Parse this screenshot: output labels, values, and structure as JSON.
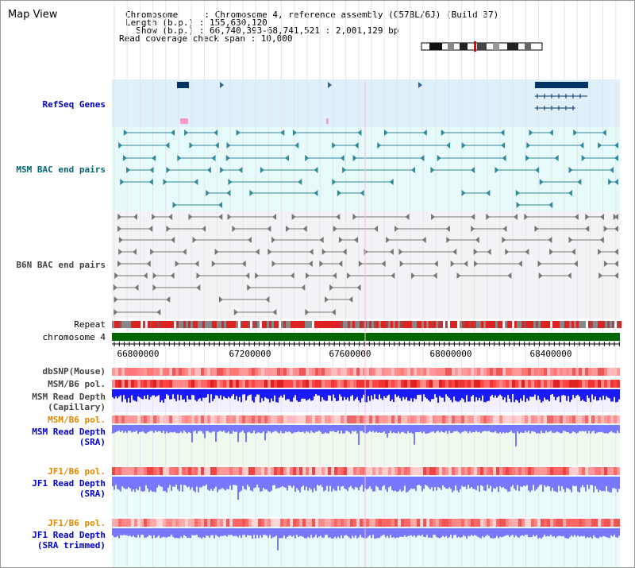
{
  "title": "Map View",
  "header": {
    "chromosome_line": "Chromosome     : Chromosome 4, reference assembly (C57BL/6J) (Build 37)",
    "length_line": "Length (b.p.) : 155,630,120",
    "show_line": "  Show (b.p.) : 66,740,393-68,741,521 : 2,001,129 bp",
    "coverage_line": "Read coverage check span : 10,000"
  },
  "tracks": {
    "refseq": "RefSeq Genes",
    "msm_bac": "MSM BAC end pairs",
    "b6n_bac": "B6N BAC end pairs",
    "repeat": "Repeat",
    "chromosome": "chromosome 4",
    "dbsnp": "dbSNP(Mouse)",
    "msm_b6_pol": "MSM/B6 pol.",
    "msm_depth_cap_1": "MSM Read Depth",
    "msm_depth_cap_2": "(Capillary)",
    "msm_b6_pol_2": "MSM/B6 pol.",
    "msm_depth_sra_1": "MSM Read Depth",
    "msm_depth_sra_2": "(SRA)",
    "jf1_b6_pol": "JF1/B6 pol.",
    "jf1_depth_sra_1": "JF1 Read Depth",
    "jf1_depth_sra_2": "(SRA)",
    "jf1_b6_pol_2": "JF1/B6 pol.",
    "jf1_depth_trim_1": "JF1 Read Depth",
    "jf1_depth_trim_2": "(SRA trimmed)"
  },
  "axis": {
    "ticks": [
      "66800000",
      "67200000",
      "67600000",
      "68000000",
      "68400000"
    ]
  },
  "colors": {
    "refseq_bg": "#dff0fa",
    "msm_bac_bg": "#e6fafa",
    "b6n_bac_bg": "#f3f3f6",
    "msm_bac_feature": "#338899",
    "b6n_bac_feature": "#777777",
    "refseq_feature": "#003366",
    "chromosome_bar": "#006600",
    "depth_blue": "#1a1aff",
    "depth_sra_blue": "#7777ff"
  }
}
